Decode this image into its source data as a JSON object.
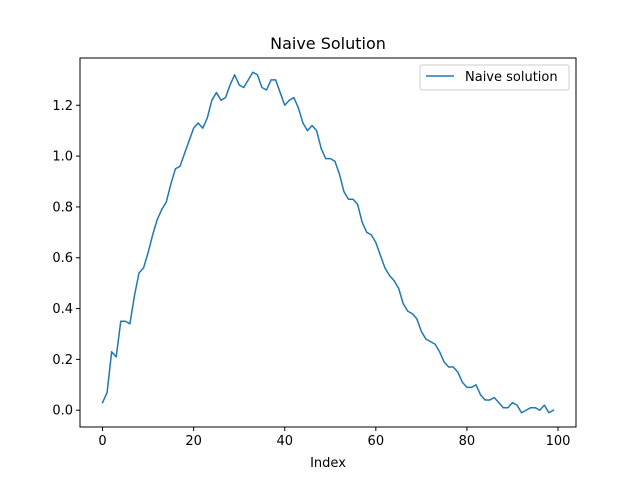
{
  "chart_data": {
    "type": "line",
    "title": "Naive Solution",
    "xlabel": "Index",
    "ylabel": "",
    "xlim": [
      -4.95,
      103.95
    ],
    "ylim": [
      -0.066,
      1.386
    ],
    "xticks": [
      0,
      20,
      40,
      60,
      80,
      100
    ],
    "yticks": [
      0.0,
      0.2,
      0.4,
      0.6,
      0.8,
      1.0,
      1.2
    ],
    "xtick_labels": [
      "0",
      "20",
      "40",
      "60",
      "80",
      "100"
    ],
    "ytick_labels": [
      "0.0",
      "0.2",
      "0.4",
      "0.6",
      "0.8",
      "1.0",
      "1.2"
    ],
    "grid": false,
    "legend_position": "top-right",
    "series": [
      {
        "name": "Naive solution",
        "color": "#1f77b4",
        "x": [
          0,
          1,
          2,
          3,
          4,
          5,
          6,
          7,
          8,
          9,
          10,
          11,
          12,
          13,
          14,
          15,
          16,
          17,
          18,
          19,
          20,
          21,
          22,
          23,
          24,
          25,
          26,
          27,
          28,
          29,
          30,
          31,
          32,
          33,
          34,
          35,
          36,
          37,
          38,
          39,
          40,
          41,
          42,
          43,
          44,
          45,
          46,
          47,
          48,
          49,
          50,
          51,
          52,
          53,
          54,
          55,
          56,
          57,
          58,
          59,
          60,
          61,
          62,
          63,
          64,
          65,
          66,
          67,
          68,
          69,
          70,
          71,
          72,
          73,
          74,
          75,
          76,
          77,
          78,
          79,
          80,
          81,
          82,
          83,
          84,
          85,
          86,
          87,
          88,
          89,
          90,
          91,
          92,
          93,
          94,
          95,
          96,
          97,
          98,
          99
        ],
        "values": [
          0.03,
          0.07,
          0.23,
          0.21,
          0.35,
          0.35,
          0.34,
          0.45,
          0.54,
          0.56,
          0.62,
          0.69,
          0.75,
          0.79,
          0.82,
          0.89,
          0.95,
          0.96,
          1.01,
          1.06,
          1.11,
          1.13,
          1.11,
          1.15,
          1.22,
          1.25,
          1.22,
          1.23,
          1.28,
          1.32,
          1.28,
          1.27,
          1.3,
          1.33,
          1.32,
          1.27,
          1.26,
          1.3,
          1.3,
          1.25,
          1.2,
          1.22,
          1.23,
          1.19,
          1.13,
          1.1,
          1.12,
          1.1,
          1.03,
          0.99,
          0.99,
          0.98,
          0.93,
          0.86,
          0.83,
          0.83,
          0.81,
          0.74,
          0.7,
          0.69,
          0.66,
          0.61,
          0.56,
          0.53,
          0.51,
          0.48,
          0.42,
          0.39,
          0.38,
          0.36,
          0.31,
          0.28,
          0.27,
          0.26,
          0.23,
          0.19,
          0.17,
          0.17,
          0.15,
          0.11,
          0.09,
          0.09,
          0.1,
          0.06,
          0.04,
          0.04,
          0.05,
          0.03,
          0.01,
          0.01,
          0.03,
          0.02,
          -0.01,
          0.0,
          0.01,
          0.01,
          0.0,
          0.02,
          -0.01,
          0.0
        ]
      }
    ]
  }
}
